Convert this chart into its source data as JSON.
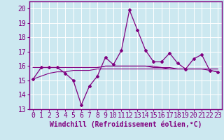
{
  "xlabel": "Windchill (Refroidissement éolien,°C)",
  "bg_color": "#cce8f0",
  "grid_color": "#ffffff",
  "line_color": "#800080",
  "spine_color": "#800080",
  "ylim": [
    13,
    20.5
  ],
  "xlim": [
    -0.5,
    23.5
  ],
  "yticks": [
    13,
    14,
    15,
    16,
    17,
    18,
    19,
    20
  ],
  "xticks": [
    0,
    1,
    2,
    3,
    4,
    5,
    6,
    7,
    8,
    9,
    10,
    11,
    12,
    13,
    14,
    15,
    16,
    17,
    18,
    19,
    20,
    21,
    22,
    23
  ],
  "main_y": [
    15.1,
    15.9,
    15.9,
    15.9,
    15.5,
    15.0,
    13.3,
    14.6,
    15.3,
    16.6,
    16.1,
    17.1,
    19.9,
    18.5,
    17.1,
    16.3,
    16.3,
    16.9,
    16.2,
    15.8,
    16.5,
    16.8,
    15.7,
    15.6
  ],
  "flat1_y": [
    15.9,
    15.9,
    15.9,
    15.9,
    15.9,
    15.9,
    15.9,
    15.9,
    15.9,
    16.0,
    16.0,
    16.0,
    16.0,
    16.0,
    16.0,
    16.0,
    15.9,
    15.9,
    15.8,
    15.8,
    15.8,
    15.8,
    15.8,
    15.8
  ],
  "flat2_y": [
    15.9,
    15.9,
    15.9,
    15.9,
    15.9,
    15.9,
    15.9,
    15.9,
    15.9,
    16.0,
    16.0,
    16.0,
    16.0,
    16.0,
    16.0,
    15.9,
    15.9,
    15.8,
    15.8,
    15.8,
    15.8,
    15.8,
    15.8,
    15.8
  ],
  "flat3_y": [
    15.1,
    15.3,
    15.5,
    15.6,
    15.6,
    15.7,
    15.7,
    15.7,
    15.8,
    15.8,
    15.8,
    15.8,
    15.8,
    15.8,
    15.8,
    15.8,
    15.8,
    15.8,
    15.8,
    15.8,
    15.8,
    15.8,
    15.7,
    15.6
  ],
  "tick_fontsize": 7,
  "xlabel_fontsize": 7
}
